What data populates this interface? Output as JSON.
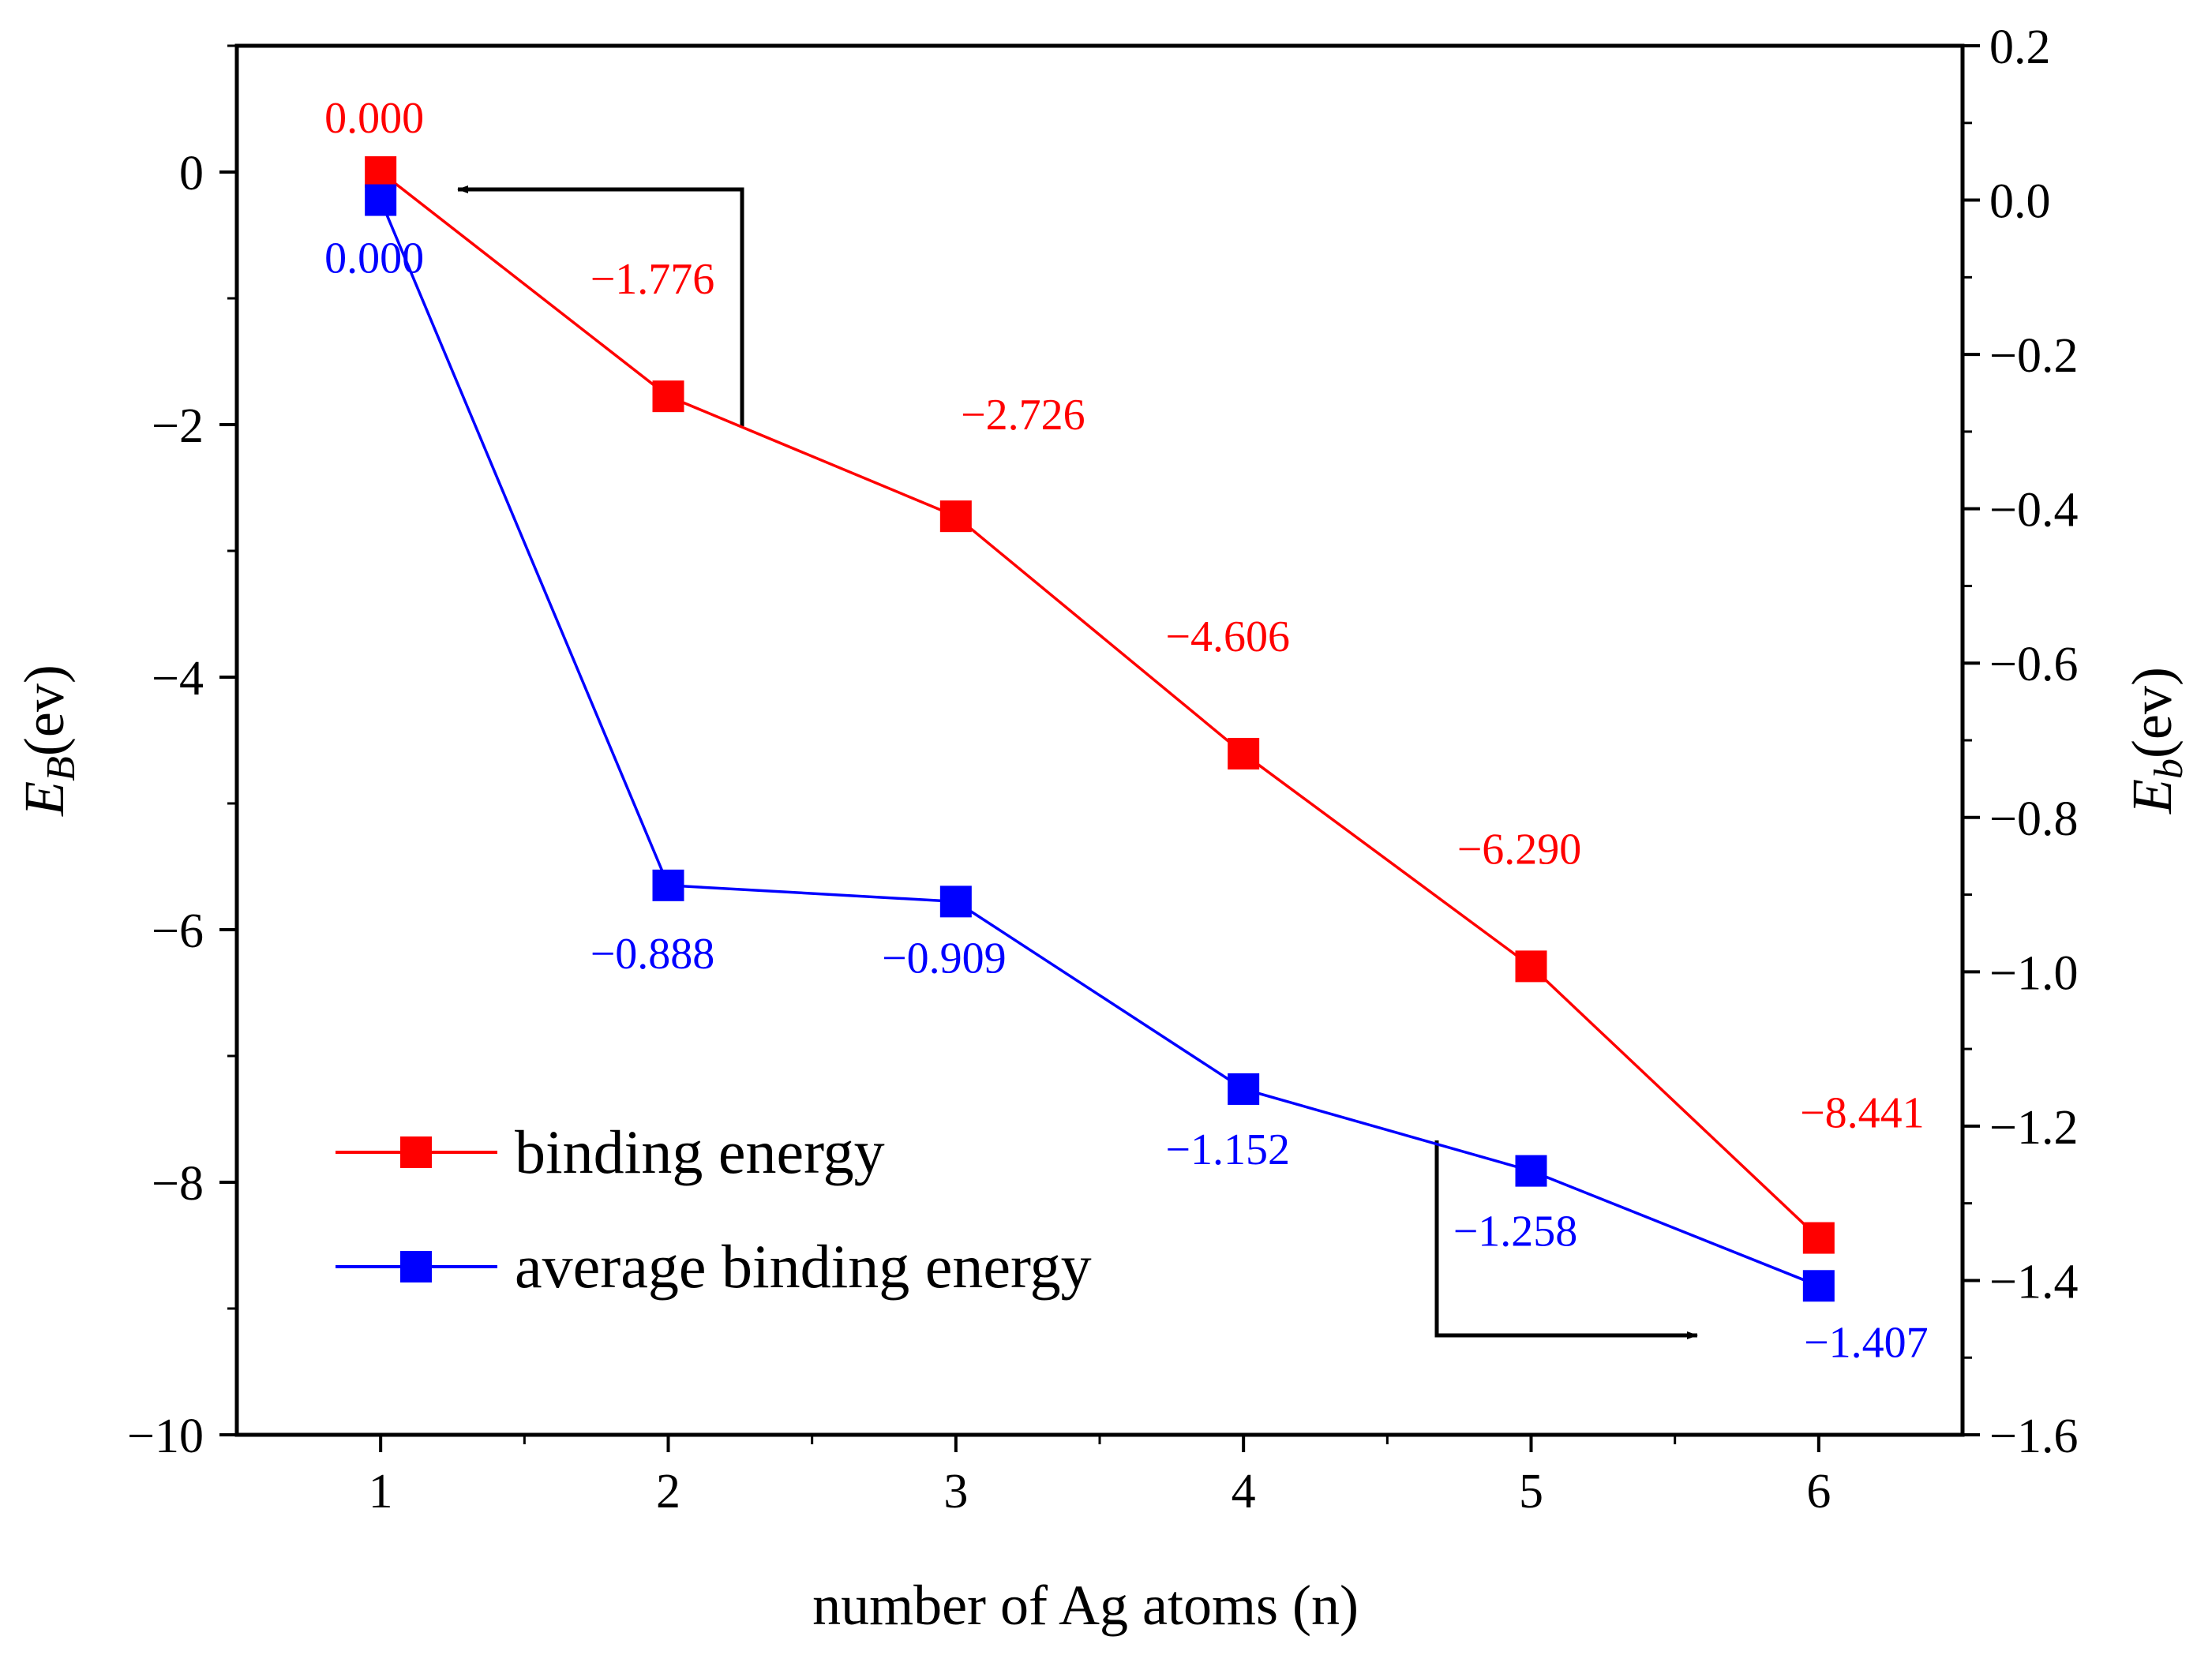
{
  "chart_data": {
    "type": "line",
    "x": [
      1,
      2,
      3,
      4,
      5,
      6
    ],
    "xlabel": "number of Ag atoms (n)",
    "xlim": [
      0.5,
      6.5
    ],
    "x_ticks": [
      "1",
      "2",
      "3",
      "4",
      "5",
      "6"
    ],
    "ylabel_left": {
      "main": "E",
      "sub": "B",
      "unit": "(ev)"
    },
    "ylabel_right": {
      "main": "E",
      "sub": "b",
      "unit": "(ev)"
    },
    "ylim_left": [
      -10,
      1
    ],
    "ylim_right": [
      -1.6,
      0.2
    ],
    "y_ticks_left": [
      "0",
      "−2",
      "−4",
      "−6",
      "−8",
      "−10"
    ],
    "y_tick_values_left": [
      0,
      -2,
      -4,
      -6,
      -8,
      -10
    ],
    "y_ticks_right": [
      "0.2",
      "0.0",
      "−0.2",
      "−0.4",
      "−0.6",
      "−0.8",
      "−1.0",
      "−1.2",
      "−1.4",
      "−1.6"
    ],
    "y_tick_values_right": [
      0.2,
      0.0,
      -0.2,
      -0.4,
      -0.6,
      -0.8,
      -1.0,
      -1.2,
      -1.4,
      -1.6
    ],
    "legend_position": "lower-left",
    "series": [
      {
        "name": "binding energy",
        "axis": "left",
        "color": "#ff0000",
        "values": [
          0.0,
          -1.776,
          -2.726,
          -4.606,
          -6.29,
          -8.441
        ],
        "labels": [
          "0.000",
          "−1.776",
          "−2.726",
          "−4.606",
          "−6.290",
          "−8.441"
        ]
      },
      {
        "name": "average binding energy",
        "axis": "right",
        "color": "#0000ff",
        "values": [
          0.0,
          -0.888,
          -0.909,
          -1.152,
          -1.258,
          -1.407
        ],
        "labels": [
          "0.000",
          "−0.888",
          "−0.909",
          "−1.152",
          "−1.258",
          "−1.407"
        ]
      }
    ],
    "annotations": [
      {
        "type": "arrow",
        "points_to": "left axis",
        "from_series": "binding energy"
      },
      {
        "type": "arrow",
        "points_to": "right axis",
        "from_series": "average binding energy"
      }
    ]
  }
}
